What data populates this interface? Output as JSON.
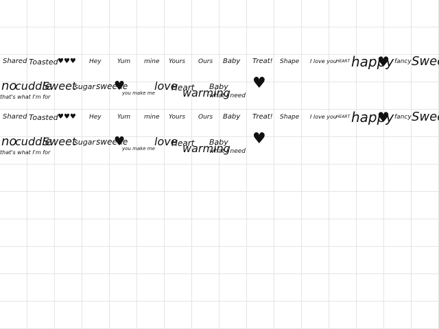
{
  "lines": [
    [
      "Shared",
      "Toasted",
      "♥♥♥",
      "Hey",
      "Yum",
      "mine",
      "Yours",
      "Ours",
      "Baby",
      "Treat!",
      "Shape",
      "I love you",
      "HEART",
      "happy",
      "♥",
      "fancy",
      "Sweet"
    ],
    [
      "no",
      "cuddle",
      "Sweet",
      "sugar",
      "sweetie",
      "♥",
      "you make me",
      "love",
      "Heart",
      "warming",
      "Baby",
      "what I need",
      "♥",
      "that's what I'm for"
    ],
    [
      "Shared",
      "Toasted",
      "♥♥♥",
      "Hey",
      "Yum",
      "mine",
      "Yours",
      "Ours",
      "Baby",
      "Treat!",
      "Shape",
      "I love you",
      "HEART",
      "happy",
      "♥",
      "fancy",
      "Sweet"
    ],
    [
      "no",
      "cuddle",
      "Sweet",
      "sugar",
      "sweetie",
      "♥",
      "you make me",
      "love",
      "Heart",
      "warming",
      "Baby",
      "what I need",
      "♥",
      "that's what I'm for"
    ]
  ]
}
